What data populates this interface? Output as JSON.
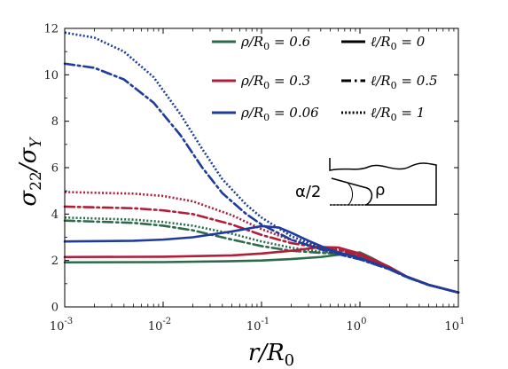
{
  "chart_data": {
    "type": "line",
    "x_scale": "log",
    "xlim": [
      0.001,
      10
    ],
    "ylim": [
      0,
      12
    ],
    "xlabel": "r/R0",
    "ylabel": "σ22/σY",
    "x_ticks": [
      {
        "value": 0.001,
        "base": "10",
        "exp": "-3"
      },
      {
        "value": 0.01,
        "base": "10",
        "exp": "-2"
      },
      {
        "value": 0.1,
        "base": "10",
        "exp": "-1"
      },
      {
        "value": 1,
        "base": "10",
        "exp": "0"
      },
      {
        "value": 10,
        "base": "10",
        "exp": "1"
      }
    ],
    "y_ticks": [
      "0",
      "2",
      "4",
      "6",
      "8",
      "10",
      "12"
    ],
    "legend": {
      "placement": "top-right",
      "colors": [
        {
          "label": "ρ/R0 = 0.6",
          "color": "#2e6b4b"
        },
        {
          "label": "ρ/R0 = 0.3",
          "color": "#b01e3a"
        },
        {
          "label": "ρ/R0 = 0.06",
          "color": "#1f3c9a"
        }
      ],
      "styles": [
        {
          "label": "ℓ/R0 = 0",
          "dash": "solid"
        },
        {
          "label": "ℓ/R0 = 0.5",
          "dash": "dashdot"
        },
        {
          "label": "ℓ/R0 = 1",
          "dash": "dotted"
        }
      ]
    },
    "inset_labels": {
      "angle": "α/2",
      "radius": "ρ"
    },
    "series": [
      {
        "rho": "0.6",
        "ell": "0",
        "color": "#2e6b4b",
        "dash": "solid",
        "points": [
          [
            0.001,
            1.92
          ],
          [
            0.01,
            1.93
          ],
          [
            0.05,
            1.97
          ],
          [
            0.1,
            2.0
          ],
          [
            0.2,
            2.06
          ],
          [
            0.4,
            2.15
          ],
          [
            0.7,
            2.28
          ],
          [
            1,
            2.35
          ],
          [
            1.3,
            2.12
          ],
          [
            2,
            1.7
          ],
          [
            3,
            1.3
          ],
          [
            5,
            0.95
          ],
          [
            10,
            0.62
          ]
        ]
      },
      {
        "rho": "0.6",
        "ell": "0.5",
        "color": "#2e6b4b",
        "dash": "dashdot",
        "points": [
          [
            0.001,
            3.72
          ],
          [
            0.005,
            3.62
          ],
          [
            0.01,
            3.5
          ],
          [
            0.02,
            3.3
          ],
          [
            0.05,
            2.9
          ],
          [
            0.1,
            2.62
          ],
          [
            0.2,
            2.42
          ],
          [
            0.4,
            2.33
          ],
          [
            0.7,
            2.28
          ],
          [
            1,
            2.2
          ],
          [
            2,
            1.68
          ],
          [
            3,
            1.3
          ],
          [
            5,
            0.95
          ],
          [
            10,
            0.62
          ]
        ]
      },
      {
        "rho": "0.6",
        "ell": "1",
        "color": "#2e6b4b",
        "dash": "dotted",
        "points": [
          [
            0.001,
            3.85
          ],
          [
            0.005,
            3.76
          ],
          [
            0.01,
            3.66
          ],
          [
            0.02,
            3.5
          ],
          [
            0.05,
            3.15
          ],
          [
            0.1,
            2.82
          ],
          [
            0.2,
            2.55
          ],
          [
            0.4,
            2.38
          ],
          [
            0.7,
            2.3
          ],
          [
            1,
            2.2
          ],
          [
            2,
            1.68
          ],
          [
            3,
            1.3
          ],
          [
            5,
            0.95
          ],
          [
            10,
            0.62
          ]
        ]
      },
      {
        "rho": "0.3",
        "ell": "0",
        "color": "#b01e3a",
        "dash": "solid",
        "points": [
          [
            0.001,
            2.15
          ],
          [
            0.01,
            2.16
          ],
          [
            0.05,
            2.22
          ],
          [
            0.1,
            2.3
          ],
          [
            0.2,
            2.42
          ],
          [
            0.4,
            2.58
          ],
          [
            0.6,
            2.56
          ],
          [
            1,
            2.3
          ],
          [
            2,
            1.72
          ],
          [
            3,
            1.3
          ],
          [
            5,
            0.95
          ],
          [
            10,
            0.62
          ]
        ]
      },
      {
        "rho": "0.3",
        "ell": "0.5",
        "color": "#b01e3a",
        "dash": "dashdot",
        "points": [
          [
            0.001,
            4.32
          ],
          [
            0.005,
            4.25
          ],
          [
            0.01,
            4.16
          ],
          [
            0.02,
            4.0
          ],
          [
            0.05,
            3.55
          ],
          [
            0.1,
            3.1
          ],
          [
            0.2,
            2.75
          ],
          [
            0.4,
            2.55
          ],
          [
            0.7,
            2.4
          ],
          [
            1,
            2.2
          ],
          [
            2,
            1.68
          ],
          [
            3,
            1.3
          ],
          [
            5,
            0.95
          ],
          [
            10,
            0.62
          ]
        ]
      },
      {
        "rho": "0.3",
        "ell": "1",
        "color": "#b01e3a",
        "dash": "dotted",
        "points": [
          [
            0.001,
            4.95
          ],
          [
            0.005,
            4.88
          ],
          [
            0.01,
            4.78
          ],
          [
            0.02,
            4.55
          ],
          [
            0.05,
            3.95
          ],
          [
            0.1,
            3.35
          ],
          [
            0.2,
            2.88
          ],
          [
            0.4,
            2.6
          ],
          [
            0.7,
            2.42
          ],
          [
            1,
            2.2
          ],
          [
            2,
            1.68
          ],
          [
            3,
            1.3
          ],
          [
            5,
            0.95
          ],
          [
            10,
            0.62
          ]
        ]
      },
      {
        "rho": "0.06",
        "ell": "0",
        "color": "#1f3c9a",
        "dash": "solid",
        "points": [
          [
            0.001,
            2.82
          ],
          [
            0.005,
            2.85
          ],
          [
            0.01,
            2.9
          ],
          [
            0.02,
            3.0
          ],
          [
            0.05,
            3.25
          ],
          [
            0.1,
            3.48
          ],
          [
            0.15,
            3.42
          ],
          [
            0.2,
            3.2
          ],
          [
            0.3,
            2.85
          ],
          [
            0.5,
            2.45
          ],
          [
            1,
            2.1
          ],
          [
            2,
            1.65
          ],
          [
            3,
            1.3
          ],
          [
            5,
            0.95
          ],
          [
            10,
            0.62
          ]
        ]
      },
      {
        "rho": "0.06",
        "ell": "0.5",
        "color": "#1f3c9a",
        "dash": "dashdot",
        "points": [
          [
            0.001,
            10.48
          ],
          [
            0.002,
            10.3
          ],
          [
            0.004,
            9.8
          ],
          [
            0.008,
            8.8
          ],
          [
            0.015,
            7.4
          ],
          [
            0.025,
            6.0
          ],
          [
            0.04,
            4.9
          ],
          [
            0.07,
            4.0
          ],
          [
            0.1,
            3.55
          ],
          [
            0.2,
            2.9
          ],
          [
            0.4,
            2.48
          ],
          [
            0.7,
            2.2
          ],
          [
            1,
            2.05
          ],
          [
            2,
            1.62
          ],
          [
            3,
            1.28
          ],
          [
            5,
            0.94
          ],
          [
            10,
            0.62
          ]
        ]
      },
      {
        "rho": "0.06",
        "ell": "1",
        "color": "#1f3c9a",
        "dash": "dotted",
        "points": [
          [
            0.001,
            11.82
          ],
          [
            0.002,
            11.6
          ],
          [
            0.004,
            11.0
          ],
          [
            0.008,
            9.9
          ],
          [
            0.015,
            8.3
          ],
          [
            0.025,
            6.8
          ],
          [
            0.04,
            5.5
          ],
          [
            0.07,
            4.4
          ],
          [
            0.1,
            3.85
          ],
          [
            0.2,
            3.05
          ],
          [
            0.4,
            2.55
          ],
          [
            0.7,
            2.22
          ],
          [
            1,
            2.05
          ],
          [
            2,
            1.62
          ],
          [
            3,
            1.28
          ],
          [
            5,
            0.94
          ],
          [
            10,
            0.62
          ]
        ]
      }
    ]
  }
}
